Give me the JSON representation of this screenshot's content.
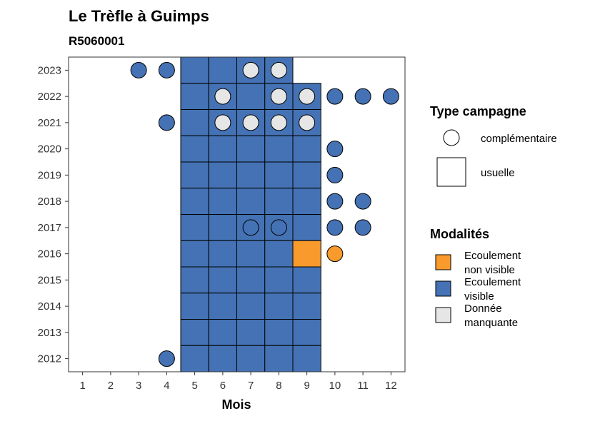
{
  "chart_data": {
    "type": "heatmap",
    "title": "Le Trèfle à Guimps",
    "subtitle": "R5060001",
    "xlabel": "Mois",
    "ylabel": "",
    "x_ticks": [
      1,
      2,
      3,
      4,
      5,
      6,
      7,
      8,
      9,
      10,
      11,
      12
    ],
    "y_ticks": [
      2012,
      2013,
      2014,
      2015,
      2016,
      2017,
      2018,
      2019,
      2020,
      2021,
      2022,
      2023
    ],
    "xlim": [
      0.5,
      12.5
    ],
    "ylim": [
      2011.5,
      2023.5
    ],
    "grid": false,
    "colors": {
      "Ecoulement visible": "#4472b4",
      "Ecoulement non visible": "#f89a2c",
      "Donnée manquante": "#e6e6e6"
    },
    "legend_shape": {
      "title": "Type campagne",
      "items": [
        {
          "label": "complémentaire",
          "shape": "circle"
        },
        {
          "label": "usuelle",
          "shape": "square"
        }
      ]
    },
    "legend_fill": {
      "title": "Modalités",
      "items": [
        {
          "label_lines": [
            "Ecoulement",
            "non visible"
          ],
          "key": "Ecoulement non visible"
        },
        {
          "label_lines": [
            "Ecoulement",
            "visible"
          ],
          "key": "Ecoulement visible"
        },
        {
          "label_lines": [
            "Donnée",
            "manquante"
          ],
          "key": "Donnée manquante"
        }
      ]
    },
    "points": [
      {
        "year": 2023,
        "month": 3,
        "type": "complémentaire",
        "mod": "Ecoulement visible"
      },
      {
        "year": 2023,
        "month": 4,
        "type": "complémentaire",
        "mod": "Ecoulement visible"
      },
      {
        "year": 2023,
        "month": 5,
        "type": "usuelle",
        "mod": "Ecoulement visible"
      },
      {
        "year": 2023,
        "month": 6,
        "type": "usuelle",
        "mod": "Ecoulement visible"
      },
      {
        "year": 2023,
        "month": 7,
        "type": "usuelle",
        "mod": "Ecoulement visible"
      },
      {
        "year": 2023,
        "month": 7,
        "type": "complémentaire",
        "mod": "Donnée manquante"
      },
      {
        "year": 2023,
        "month": 8,
        "type": "usuelle",
        "mod": "Ecoulement visible"
      },
      {
        "year": 2023,
        "month": 8,
        "type": "complémentaire",
        "mod": "Donnée manquante"
      },
      {
        "year": 2022,
        "month": 5,
        "type": "usuelle",
        "mod": "Ecoulement visible"
      },
      {
        "year": 2022,
        "month": 6,
        "type": "usuelle",
        "mod": "Ecoulement visible"
      },
      {
        "year": 2022,
        "month": 6,
        "type": "complémentaire",
        "mod": "Donnée manquante"
      },
      {
        "year": 2022,
        "month": 7,
        "type": "usuelle",
        "mod": "Ecoulement visible"
      },
      {
        "year": 2022,
        "month": 8,
        "type": "usuelle",
        "mod": "Ecoulement visible"
      },
      {
        "year": 2022,
        "month": 8,
        "type": "complémentaire",
        "mod": "Donnée manquante"
      },
      {
        "year": 2022,
        "month": 9,
        "type": "usuelle",
        "mod": "Ecoulement visible"
      },
      {
        "year": 2022,
        "month": 9,
        "type": "complémentaire",
        "mod": "Donnée manquante"
      },
      {
        "year": 2022,
        "month": 10,
        "type": "complémentaire",
        "mod": "Ecoulement visible"
      },
      {
        "year": 2022,
        "month": 11,
        "type": "complémentaire",
        "mod": "Ecoulement visible"
      },
      {
        "year": 2022,
        "month": 12,
        "type": "complémentaire",
        "mod": "Ecoulement visible"
      },
      {
        "year": 2021,
        "month": 4,
        "type": "complémentaire",
        "mod": "Ecoulement visible"
      },
      {
        "year": 2021,
        "month": 5,
        "type": "usuelle",
        "mod": "Ecoulement visible"
      },
      {
        "year": 2021,
        "month": 6,
        "type": "usuelle",
        "mod": "Ecoulement visible"
      },
      {
        "year": 2021,
        "month": 6,
        "type": "complémentaire",
        "mod": "Donnée manquante"
      },
      {
        "year": 2021,
        "month": 7,
        "type": "usuelle",
        "mod": "Ecoulement visible"
      },
      {
        "year": 2021,
        "month": 7,
        "type": "complémentaire",
        "mod": "Donnée manquante"
      },
      {
        "year": 2021,
        "month": 8,
        "type": "usuelle",
        "mod": "Ecoulement visible"
      },
      {
        "year": 2021,
        "month": 8,
        "type": "complémentaire",
        "mod": "Donnée manquante"
      },
      {
        "year": 2021,
        "month": 9,
        "type": "usuelle",
        "mod": "Ecoulement visible"
      },
      {
        "year": 2021,
        "month": 9,
        "type": "complémentaire",
        "mod": "Donnée manquante"
      },
      {
        "year": 2020,
        "month": 5,
        "type": "usuelle",
        "mod": "Ecoulement visible"
      },
      {
        "year": 2020,
        "month": 6,
        "type": "usuelle",
        "mod": "Ecoulement visible"
      },
      {
        "year": 2020,
        "month": 7,
        "type": "usuelle",
        "mod": "Ecoulement visible"
      },
      {
        "year": 2020,
        "month": 8,
        "type": "usuelle",
        "mod": "Ecoulement visible"
      },
      {
        "year": 2020,
        "month": 9,
        "type": "usuelle",
        "mod": "Ecoulement visible"
      },
      {
        "year": 2020,
        "month": 10,
        "type": "complémentaire",
        "mod": "Ecoulement visible"
      },
      {
        "year": 2019,
        "month": 5,
        "type": "usuelle",
        "mod": "Ecoulement visible"
      },
      {
        "year": 2019,
        "month": 6,
        "type": "usuelle",
        "mod": "Ecoulement visible"
      },
      {
        "year": 2019,
        "month": 7,
        "type": "usuelle",
        "mod": "Ecoulement visible"
      },
      {
        "year": 2019,
        "month": 8,
        "type": "usuelle",
        "mod": "Ecoulement visible"
      },
      {
        "year": 2019,
        "month": 9,
        "type": "usuelle",
        "mod": "Ecoulement visible"
      },
      {
        "year": 2019,
        "month": 10,
        "type": "complémentaire",
        "mod": "Ecoulement visible"
      },
      {
        "year": 2018,
        "month": 5,
        "type": "usuelle",
        "mod": "Ecoulement visible"
      },
      {
        "year": 2018,
        "month": 6,
        "type": "usuelle",
        "mod": "Ecoulement visible"
      },
      {
        "year": 2018,
        "month": 7,
        "type": "usuelle",
        "mod": "Ecoulement visible"
      },
      {
        "year": 2018,
        "month": 8,
        "type": "usuelle",
        "mod": "Ecoulement visible"
      },
      {
        "year": 2018,
        "month": 9,
        "type": "usuelle",
        "mod": "Ecoulement visible"
      },
      {
        "year": 2018,
        "month": 10,
        "type": "complémentaire",
        "mod": "Ecoulement visible"
      },
      {
        "year": 2018,
        "month": 11,
        "type": "complémentaire",
        "mod": "Ecoulement visible"
      },
      {
        "year": 2017,
        "month": 5,
        "type": "usuelle",
        "mod": "Ecoulement visible"
      },
      {
        "year": 2017,
        "month": 6,
        "type": "usuelle",
        "mod": "Ecoulement visible"
      },
      {
        "year": 2017,
        "month": 7,
        "type": "usuelle",
        "mod": "Ecoulement visible"
      },
      {
        "year": 2017,
        "month": 7,
        "type": "complémentaire",
        "mod": "Ecoulement visible"
      },
      {
        "year": 2017,
        "month": 8,
        "type": "usuelle",
        "mod": "Ecoulement visible"
      },
      {
        "year": 2017,
        "month": 8,
        "type": "complémentaire",
        "mod": "Ecoulement visible"
      },
      {
        "year": 2017,
        "month": 9,
        "type": "usuelle",
        "mod": "Ecoulement visible"
      },
      {
        "year": 2017,
        "month": 10,
        "type": "complémentaire",
        "mod": "Ecoulement visible"
      },
      {
        "year": 2017,
        "month": 11,
        "type": "complémentaire",
        "mod": "Ecoulement visible"
      },
      {
        "year": 2016,
        "month": 5,
        "type": "usuelle",
        "mod": "Ecoulement visible"
      },
      {
        "year": 2016,
        "month": 6,
        "type": "usuelle",
        "mod": "Ecoulement visible"
      },
      {
        "year": 2016,
        "month": 7,
        "type": "usuelle",
        "mod": "Ecoulement visible"
      },
      {
        "year": 2016,
        "month": 8,
        "type": "usuelle",
        "mod": "Ecoulement visible"
      },
      {
        "year": 2016,
        "month": 9,
        "type": "usuelle",
        "mod": "Ecoulement non visible"
      },
      {
        "year": 2016,
        "month": 10,
        "type": "complémentaire",
        "mod": "Ecoulement non visible"
      },
      {
        "year": 2015,
        "month": 5,
        "type": "usuelle",
        "mod": "Ecoulement visible"
      },
      {
        "year": 2015,
        "month": 6,
        "type": "usuelle",
        "mod": "Ecoulement visible"
      },
      {
        "year": 2015,
        "month": 7,
        "type": "usuelle",
        "mod": "Ecoulement visible"
      },
      {
        "year": 2015,
        "month": 8,
        "type": "usuelle",
        "mod": "Ecoulement visible"
      },
      {
        "year": 2015,
        "month": 9,
        "type": "usuelle",
        "mod": "Ecoulement visible"
      },
      {
        "year": 2014,
        "month": 5,
        "type": "usuelle",
        "mod": "Ecoulement visible"
      },
      {
        "year": 2014,
        "month": 6,
        "type": "usuelle",
        "mod": "Ecoulement visible"
      },
      {
        "year": 2014,
        "month": 7,
        "type": "usuelle",
        "mod": "Ecoulement visible"
      },
      {
        "year": 2014,
        "month": 8,
        "type": "usuelle",
        "mod": "Ecoulement visible"
      },
      {
        "year": 2014,
        "month": 9,
        "type": "usuelle",
        "mod": "Ecoulement visible"
      },
      {
        "year": 2013,
        "month": 5,
        "type": "usuelle",
        "mod": "Ecoulement visible"
      },
      {
        "year": 2013,
        "month": 6,
        "type": "usuelle",
        "mod": "Ecoulement visible"
      },
      {
        "year": 2013,
        "month": 7,
        "type": "usuelle",
        "mod": "Ecoulement visible"
      },
      {
        "year": 2013,
        "month": 8,
        "type": "usuelle",
        "mod": "Ecoulement visible"
      },
      {
        "year": 2013,
        "month": 9,
        "type": "usuelle",
        "mod": "Ecoulement visible"
      },
      {
        "year": 2012,
        "month": 4,
        "type": "complémentaire",
        "mod": "Ecoulement visible"
      },
      {
        "year": 2012,
        "month": 5,
        "type": "usuelle",
        "mod": "Ecoulement visible"
      },
      {
        "year": 2012,
        "month": 6,
        "type": "usuelle",
        "mod": "Ecoulement visible"
      },
      {
        "year": 2012,
        "month": 7,
        "type": "usuelle",
        "mod": "Ecoulement visible"
      },
      {
        "year": 2012,
        "month": 8,
        "type": "usuelle",
        "mod": "Ecoulement visible"
      },
      {
        "year": 2012,
        "month": 9,
        "type": "usuelle",
        "mod": "Ecoulement visible"
      }
    ]
  }
}
